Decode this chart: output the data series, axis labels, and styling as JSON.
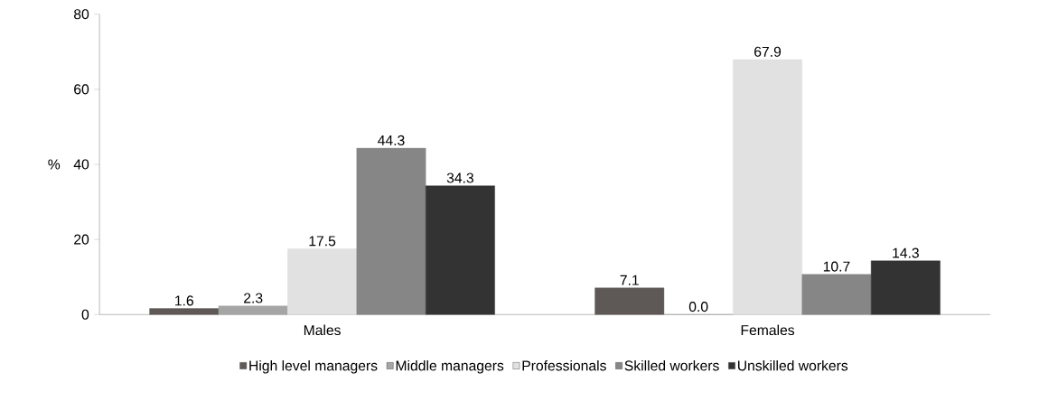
{
  "chart_data": {
    "type": "bar",
    "ylabel": "%",
    "categories": [
      "Males",
      "Females"
    ],
    "series": [
      {
        "name": "High level managers",
        "color": "#5e5857",
        "values": [
          1.6,
          7.1
        ],
        "value_labels": [
          "1.6",
          "7.1"
        ]
      },
      {
        "name": "Middle managers",
        "color": "#a5a5a5",
        "values": [
          2.3,
          0
        ],
        "value_labels": [
          "2.3",
          "0.0"
        ]
      },
      {
        "name": "Professionals",
        "color": "#e1e1e1",
        "values": [
          17.5,
          67.9
        ],
        "value_labels": [
          "17.5",
          "67.9"
        ]
      },
      {
        "name": "Skilled workers",
        "color": "#868686",
        "values": [
          44.3,
          10.7
        ],
        "value_labels": [
          "44.3",
          "10.7"
        ]
      },
      {
        "name": "Unskilled workers",
        "color": "#333333",
        "values": [
          34.3,
          14.3
        ],
        "value_labels": [
          "34.3",
          "14.3"
        ]
      }
    ],
    "ylim": [
      0,
      80
    ],
    "yticks": [
      0,
      20,
      40,
      60,
      80
    ],
    "legend": "bottom",
    "grid": false
  }
}
